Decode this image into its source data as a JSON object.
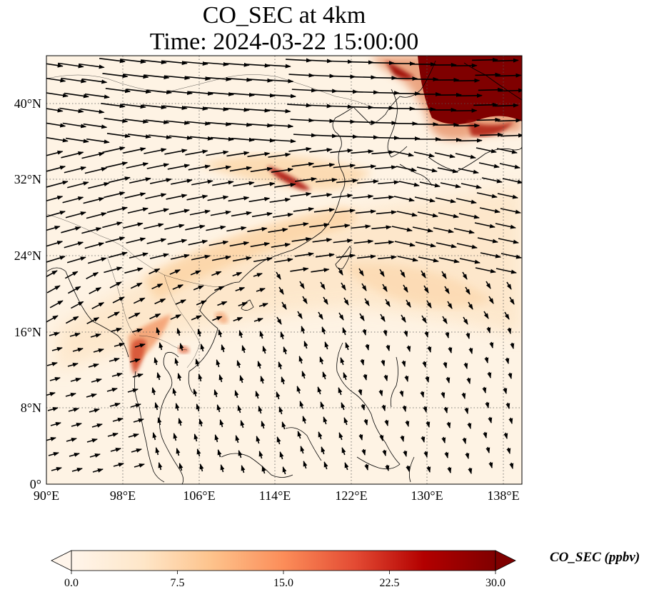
{
  "title": {
    "line1": "CO_SEC at 4km",
    "line2": "Time: 2024-03-22 15:00:00"
  },
  "map": {
    "lon_range": [
      90,
      140
    ],
    "lat_range": [
      0,
      45
    ],
    "lon_ticks": [
      "90°E",
      "98°E",
      "106°E",
      "114°E",
      "122°E",
      "130°E",
      "138°E"
    ],
    "lat_ticks": [
      "0°",
      "8°N",
      "16°N",
      "24°N",
      "32°N",
      "40°N"
    ],
    "gridlines": true,
    "field": "CO_SEC",
    "vectors": "wind arrows"
  },
  "colorbar": {
    "label": "CO_SEC (ppbv)",
    "ticks": [
      "0.0",
      "7.5",
      "15.0",
      "22.5",
      "30.0"
    ],
    "range": [
      0,
      30
    ],
    "colors": [
      "#fff5eb",
      "#fdd49e",
      "#fdae6b",
      "#f16913",
      "#d94801",
      "#a50f15",
      "#7f0000"
    ]
  }
}
